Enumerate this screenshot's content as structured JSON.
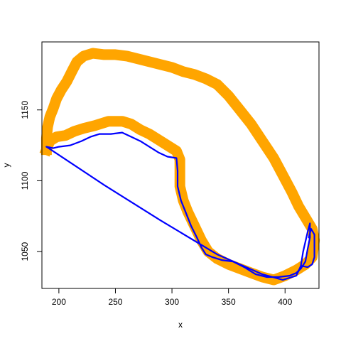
{
  "chart_data": {
    "type": "line",
    "title": "",
    "xlabel": "x",
    "ylabel": "y",
    "xlim": [
      185,
      430
    ],
    "ylim": [
      1024,
      1198
    ],
    "xticks": [
      200,
      250,
      300,
      350,
      400
    ],
    "yticks": [
      1050,
      1100,
      1150
    ],
    "grid": false,
    "series": [
      {
        "style": "thick-band",
        "color": "#FFA500",
        "points": [
          [
            189,
            1122
          ],
          [
            192,
            1128
          ],
          [
            198,
            1131
          ],
          [
            206,
            1132
          ],
          [
            214,
            1135
          ],
          [
            222,
            1137
          ],
          [
            232,
            1139
          ],
          [
            244,
            1142
          ],
          [
            256,
            1142
          ],
          [
            264,
            1140
          ],
          [
            272,
            1136
          ],
          [
            280,
            1133
          ],
          [
            288,
            1129
          ],
          [
            296,
            1125
          ],
          [
            304,
            1121
          ],
          [
            307,
            1115
          ],
          [
            307,
            1096
          ],
          [
            310,
            1086
          ],
          [
            314,
            1078
          ],
          [
            320,
            1068
          ],
          [
            326,
            1058
          ],
          [
            332,
            1050
          ],
          [
            340,
            1045
          ],
          [
            350,
            1041
          ],
          [
            360,
            1038
          ],
          [
            370,
            1035
          ],
          [
            380,
            1032
          ],
          [
            390,
            1030
          ],
          [
            400,
            1033
          ],
          [
            410,
            1037
          ],
          [
            418,
            1041
          ],
          [
            424,
            1046
          ],
          [
            426,
            1058
          ],
          [
            424,
            1066
          ],
          [
            418,
            1074
          ],
          [
            412,
            1082
          ],
          [
            406,
            1092
          ],
          [
            398,
            1104
          ],
          [
            390,
            1116
          ],
          [
            380,
            1128
          ],
          [
            370,
            1140
          ],
          [
            360,
            1150
          ],
          [
            350,
            1160
          ],
          [
            340,
            1168
          ],
          [
            330,
            1172
          ],
          [
            320,
            1175
          ],
          [
            310,
            1177
          ],
          [
            300,
            1180
          ],
          [
            290,
            1182
          ],
          [
            280,
            1184
          ],
          [
            270,
            1186
          ],
          [
            260,
            1188
          ],
          [
            250,
            1189
          ],
          [
            240,
            1189
          ],
          [
            230,
            1190
          ],
          [
            222,
            1188
          ],
          [
            216,
            1184
          ],
          [
            212,
            1178
          ],
          [
            207,
            1170
          ],
          [
            202,
            1164
          ],
          [
            198,
            1158
          ],
          [
            195,
            1151
          ],
          [
            192,
            1145
          ],
          [
            190,
            1138
          ],
          [
            189,
            1130
          ],
          [
            189,
            1122
          ]
        ]
      },
      {
        "style": "line",
        "color": "#0000FF",
        "points": [
          [
            189,
            1124
          ],
          [
            195,
            1123
          ],
          [
            200,
            1124
          ],
          [
            210,
            1125
          ],
          [
            220,
            1128
          ],
          [
            228,
            1131
          ],
          [
            236,
            1133
          ],
          [
            246,
            1133
          ],
          [
            256,
            1134
          ],
          [
            264,
            1131
          ],
          [
            272,
            1128
          ],
          [
            280,
            1124
          ],
          [
            288,
            1120
          ],
          [
            296,
            1117
          ],
          [
            304,
            1116
          ],
          [
            305,
            1107
          ],
          [
            305,
            1096
          ],
          [
            308,
            1086
          ],
          [
            312,
            1078
          ],
          [
            317,
            1068
          ],
          [
            322,
            1060
          ],
          [
            326,
            1053
          ],
          [
            330,
            1048
          ],
          [
            336,
            1046
          ],
          [
            344,
            1044
          ],
          [
            354,
            1043
          ],
          [
            364,
            1039
          ],
          [
            374,
            1034
          ],
          [
            384,
            1032
          ],
          [
            394,
            1032
          ],
          [
            404,
            1033
          ],
          [
            410,
            1035
          ],
          [
            414,
            1038
          ],
          [
            418,
            1043
          ],
          [
            420,
            1052
          ],
          [
            422,
            1060
          ],
          [
            422,
            1070
          ],
          [
            420,
            1064
          ],
          [
            416,
            1050
          ],
          [
            414,
            1040
          ],
          [
            420,
            1039
          ],
          [
            424,
            1041
          ],
          [
            426,
            1046
          ],
          [
            426,
            1062
          ],
          [
            423,
            1066
          ],
          [
            421,
            1060
          ]
        ]
      },
      {
        "style": "line",
        "color": "#0000FF",
        "points": [
          [
            189,
            1124
          ],
          [
            240,
            1097
          ],
          [
            290,
            1072
          ],
          [
            340,
            1048
          ],
          [
            380,
            1034
          ],
          [
            398,
            1030
          ],
          [
            410,
            1033
          ],
          [
            414,
            1040
          ]
        ]
      }
    ]
  }
}
